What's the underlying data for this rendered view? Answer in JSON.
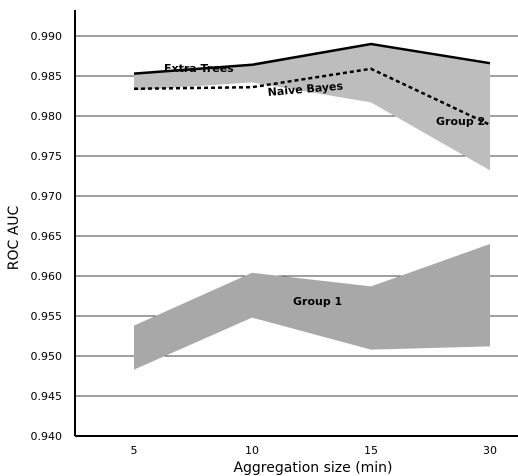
{
  "chart_data": {
    "type": "line",
    "xlabel": "Aggregation size (min)",
    "ylabel": "ROC AUC",
    "categories": [
      "5",
      "10",
      "15",
      "30"
    ],
    "ylim": [
      0.94,
      0.9935
    ],
    "yticks": [
      "0.940",
      "0.945",
      "0.950",
      "0.955",
      "0.960",
      "0.965",
      "0.970",
      "0.975",
      "0.980",
      "0.985",
      "0.990"
    ],
    "grid": "horizontal",
    "series": [
      {
        "name": "Extra Trees",
        "values": [
          0.9853,
          0.9864,
          0.989,
          0.9866
        ],
        "style": "solid",
        "color": "#000000"
      },
      {
        "name": "Naive Bayes",
        "values": [
          0.9834,
          0.9836,
          0.9859,
          0.9789
        ],
        "style": "dashed",
        "color": "#000000"
      }
    ],
    "bands": [
      {
        "name": "Group 2",
        "upper": [
          0.9853,
          0.9864,
          0.989,
          0.9866
        ],
        "lower": [
          0.9832,
          0.9842,
          0.9817,
          0.9732
        ],
        "color": "#bdbdbd"
      },
      {
        "name": "Group 1",
        "upper": [
          0.9538,
          0.9604,
          0.9587,
          0.964
        ],
        "lower": [
          0.9483,
          0.9548,
          0.9508,
          0.9512
        ],
        "color": "#a8a8a8"
      }
    ]
  }
}
